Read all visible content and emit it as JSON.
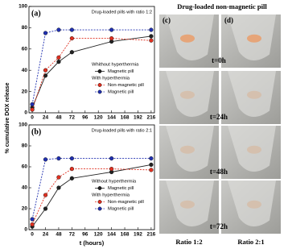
{
  "chart_data": [
    {
      "type": "line",
      "panel_label": "(a)",
      "annotation": "Drug-loaded pills with ratio 1:2",
      "ylabel": "% cumulative DOX release",
      "x": [
        0,
        24,
        48,
        72,
        144,
        216
      ],
      "xlim": [
        -6,
        222
      ],
      "xticks": [
        0,
        24,
        48,
        72,
        96,
        120,
        144,
        168,
        192,
        216
      ],
      "ylim": [
        0,
        100
      ],
      "yticks": [
        0,
        20,
        40,
        60,
        80,
        100
      ],
      "legend": "lower right",
      "legend_headers": [
        "Whithout hyperthermia",
        "With hyperthermia"
      ],
      "series": [
        {
          "name": "Magnetic pill",
          "color": "#222222",
          "dashed": false,
          "values": [
            5,
            35,
            48,
            57,
            67,
            72
          ]
        },
        {
          "name": "Non-magnetic pill",
          "color": "#e03020",
          "dashed": true,
          "values": [
            3,
            40,
            52,
            70,
            70,
            68
          ]
        },
        {
          "name": "Magnetic pill",
          "color": "#2030b0",
          "dashed": true,
          "values": [
            8,
            75,
            78,
            78,
            78,
            78
          ]
        }
      ]
    },
    {
      "type": "line",
      "panel_label": "(b)",
      "annotation": "Drug-loaded pills with ratio 2:1",
      "xlabel": "t (hours)",
      "x": [
        0,
        24,
        48,
        72,
        144,
        216
      ],
      "xlim": [
        -6,
        222
      ],
      "xticks": [
        0,
        24,
        48,
        72,
        96,
        120,
        144,
        168,
        192,
        216
      ],
      "ylim": [
        0,
        100
      ],
      "yticks": [
        0,
        20,
        40,
        60,
        80,
        100
      ],
      "legend": "lower right",
      "legend_headers": [
        "Without hyperthermia",
        "With hyperthermia"
      ],
      "series": [
        {
          "name": "Magnetic pill",
          "color": "#222222",
          "dashed": false,
          "values": [
            3,
            20,
            40,
            49,
            55,
            62
          ]
        },
        {
          "name": "Non-magnetic pill",
          "color": "#e03020",
          "dashed": true,
          "values": [
            5,
            33,
            50,
            58,
            58,
            57
          ]
        },
        {
          "name": "Magnetic pill",
          "color": "#2030b0",
          "dashed": true,
          "values": [
            10,
            67,
            68,
            68,
            68,
            68
          ]
        }
      ]
    }
  ],
  "photos": {
    "title": "Drug-loaded non-magnetic pill",
    "columns": [
      "(c)",
      "(d)"
    ],
    "rows": [
      "t=0h",
      "t=24h",
      "t=48h",
      "t=72h"
    ],
    "footer": [
      "Ratio 1:2",
      "Ratio 2:1"
    ]
  }
}
